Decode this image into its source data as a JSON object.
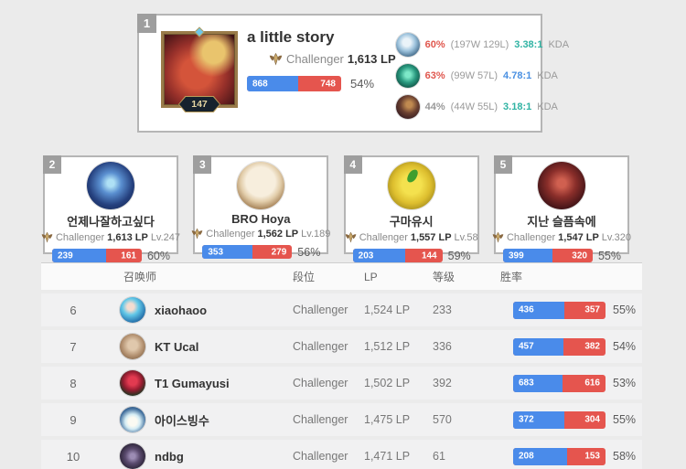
{
  "colors": {
    "page_bg": "#ebebeb",
    "win_bar": "#4a8bea",
    "loss_bar": "#e5554e"
  },
  "top_player": {
    "rank": "1",
    "avatar_level": "147",
    "name": "a little story",
    "tier": "Challenger",
    "lp": "1,613 LP",
    "wins": "868",
    "losses": "748",
    "win_pct": 54,
    "winrate": "54%",
    "champions": [
      {
        "pct": "60%",
        "pct_color": "#e0574e",
        "record": "(197W 129L)",
        "kda": "3.38:1",
        "kda_color": "#2fb3a3",
        "kda_label": "KDA"
      },
      {
        "pct": "63%",
        "pct_color": "#e0574e",
        "record": "(99W 57L)",
        "kda": "4.78:1",
        "kda_color": "#4a90e2",
        "kda_label": "KDA"
      },
      {
        "pct": "44%",
        "pct_color": "#999999",
        "record": "(44W 55L)",
        "kda": "3.18:1",
        "kda_color": "#2fb3a3",
        "kda_label": "KDA"
      }
    ]
  },
  "cards": [
    {
      "rank": "2",
      "name": "언제나잘하고싶다",
      "tier": "Challenger",
      "lp": "1,613 LP",
      "level": "Lv.247",
      "wins": "239",
      "losses": "161",
      "win_pct": 60,
      "winrate": "60%"
    },
    {
      "rank": "3",
      "name": "BRO Hoya",
      "tier": "Challenger",
      "lp": "1,562 LP",
      "level": "Lv.189",
      "wins": "353",
      "losses": "279",
      "win_pct": 56,
      "winrate": "56%"
    },
    {
      "rank": "4",
      "name": "구마유시",
      "tier": "Challenger",
      "lp": "1,557 LP",
      "level": "Lv.58",
      "wins": "203",
      "losses": "144",
      "win_pct": 59,
      "winrate": "59%"
    },
    {
      "rank": "5",
      "name": "지난 슬픔속에",
      "tier": "Challenger",
      "lp": "1,547 LP",
      "level": "Lv.320",
      "wins": "399",
      "losses": "320",
      "win_pct": 55,
      "winrate": "55%"
    }
  ],
  "table": {
    "headers": {
      "summoner": "召唤师",
      "tier": "段位",
      "lp": "LP",
      "level": "等级",
      "winrate": "胜率"
    },
    "rows": [
      {
        "rank": "6",
        "name": "xiaohaoo",
        "tier": "Challenger",
        "lp": "1,524 LP",
        "level": "233",
        "wins": "436",
        "losses": "357",
        "win_pct": 55,
        "winrate": "55%"
      },
      {
        "rank": "7",
        "name": "KT Ucal",
        "tier": "Challenger",
        "lp": "1,512 LP",
        "level": "336",
        "wins": "457",
        "losses": "382",
        "win_pct": 54,
        "winrate": "54%"
      },
      {
        "rank": "8",
        "name": "T1 Gumayusi",
        "tier": "Challenger",
        "lp": "1,502 LP",
        "level": "392",
        "wins": "683",
        "losses": "616",
        "win_pct": 53,
        "winrate": "53%"
      },
      {
        "rank": "9",
        "name": "아이스빙수",
        "tier": "Challenger",
        "lp": "1,475 LP",
        "level": "570",
        "wins": "372",
        "losses": "304",
        "win_pct": 55,
        "winrate": "55%"
      },
      {
        "rank": "10",
        "name": "ndbg",
        "tier": "Challenger",
        "lp": "1,471 LP",
        "level": "61",
        "wins": "208",
        "losses": "153",
        "win_pct": 58,
        "winrate": "58%"
      }
    ]
  }
}
